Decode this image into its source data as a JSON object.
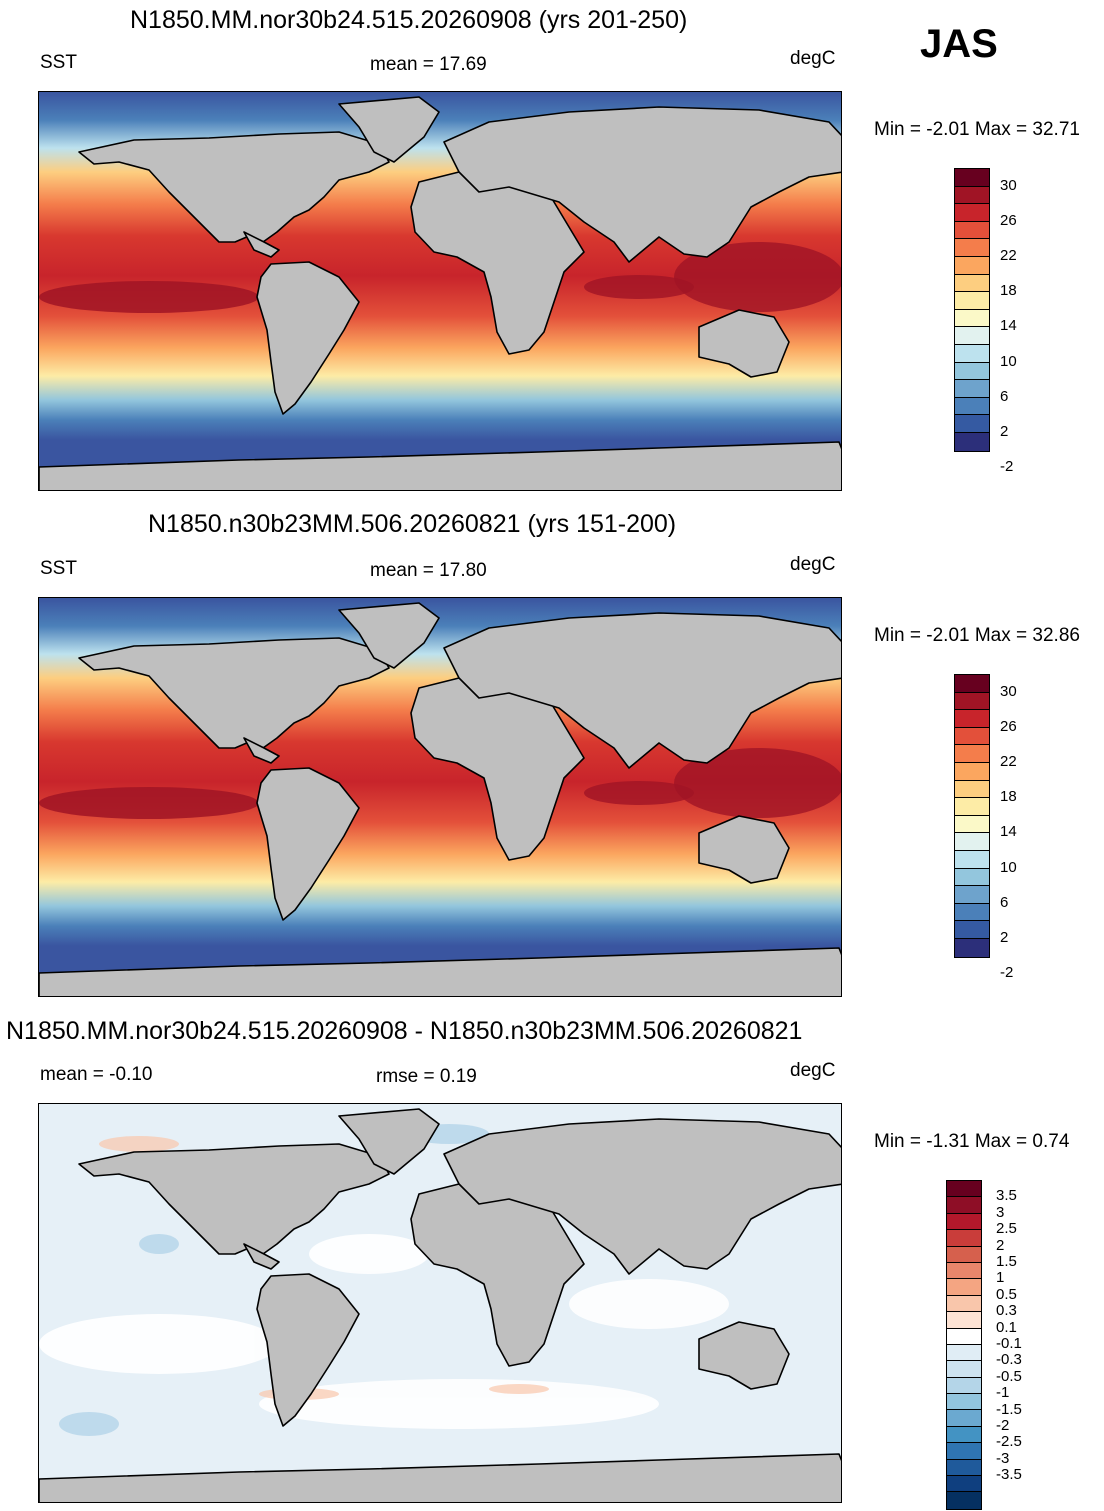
{
  "season": "JAS",
  "panels": [
    {
      "title": "N1850.MM.nor30b24.515.20260908 (yrs 201-250)",
      "left_label": "SST",
      "center_label": "mean =  17.69",
      "units": "degC",
      "minmax": "Min =  -2.01 Max =  32.71",
      "colorbar_labels": [
        "30",
        "26",
        "22",
        "18",
        "14",
        "10",
        "6",
        "2",
        "-2"
      ]
    },
    {
      "title": "N1850.n30b23MM.506.20260821 (yrs 151-200)",
      "left_label": "SST",
      "center_label": "mean =  17.80",
      "units": "degC",
      "minmax": "Min =  -2.01 Max =  32.86",
      "colorbar_labels": [
        "30",
        "26",
        "22",
        "18",
        "14",
        "10",
        "6",
        "2",
        "-2"
      ]
    },
    {
      "title": "N1850.MM.nor30b24.515.20260908 - N1850.n30b23MM.506.20260821",
      "left_label": "mean =  -0.10",
      "center_label": "rmse =   0.19",
      "units": "degC",
      "minmax": "Min =  -1.31 Max =   0.74",
      "colorbar_labels": [
        "3.5",
        "3",
        "2.5",
        "2",
        "1.5",
        "1",
        "0.5",
        "0.3",
        "0.1",
        "-0.1",
        "-0.3",
        "-0.5",
        "-1",
        "-1.5",
        "-2",
        "-2.5",
        "-3",
        "-3.5"
      ]
    }
  ],
  "colors": {
    "land": "#bfbfbf",
    "sst_scale": [
      "#67001f",
      "#a01425",
      "#c8242b",
      "#e3503a",
      "#f47d4b",
      "#fba65f",
      "#fdce80",
      "#fdeca6",
      "#fbf9c8",
      "#e2f2ef",
      "#bde2ee",
      "#93c6dd",
      "#6ea3cc",
      "#4b80b9",
      "#355aa2",
      "#2c2f7a"
    ],
    "diff_scale": [
      "#67001f",
      "#8e0e26",
      "#b2182b",
      "#c93d3a",
      "#d6604d",
      "#e8866b",
      "#f4a582",
      "#f9c6ab",
      "#fde3d4",
      "#ffffff",
      "#e0edf5",
      "#cde3f0",
      "#b4d5e8",
      "#92c5de",
      "#6ba9d0",
      "#4393c3",
      "#2f75b2",
      "#1f5a9b",
      "#0f3f7f",
      "#053061"
    ]
  }
}
